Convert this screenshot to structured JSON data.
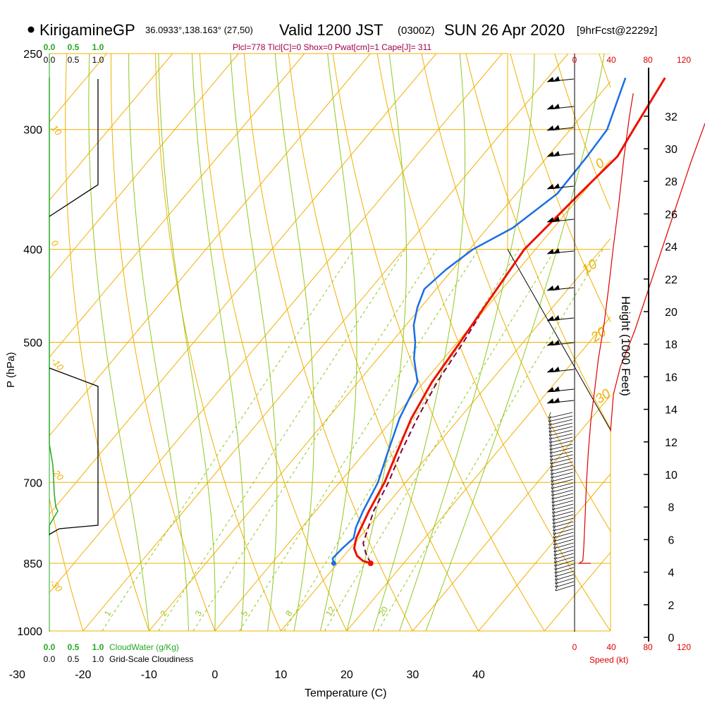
{
  "header": {
    "station": "KirigamineGP",
    "coords": "36.0933°,138.163° (27,50)",
    "valid": "Valid 1200 JST",
    "zulu": "(0300Z)",
    "date": "SUN 26 Apr 2020",
    "forecast": "[9hrFcst@2229z]",
    "indices": "Plcl=778 Tlcl[C]=0 Shox=0 Pwat[cm]=1 Cape[J]= 311"
  },
  "axes": {
    "x_label": "Temperature (C)",
    "y_label": "P (hPa)",
    "height_label": "Height (1000 Feet)",
    "speed_label": "Speed (kt)",
    "cloudwater_label": "CloudWater (g/Kg)",
    "cloudiness_label": "Grid-Scale Cloudiness"
  },
  "colors": {
    "isobar": "#f0b000",
    "isotherm": "#f0b000",
    "dry_adiabat": "#f0b000",
    "moist_adiabat": "#90c820",
    "mixing_ratio": "#90c820",
    "temperature": "#ee1100",
    "dewpoint": "#1a6ee6",
    "parcel": "#800040",
    "cloudwater": "#22aa22",
    "speed": "#dd0000",
    "indices": "#a0004a"
  },
  "chart_data": {
    "type": "line",
    "title": "KirigamineGP 36.0933°,138.163° (27,50) Valid 1200 JST (0300Z) SUN 26 Apr 2020 [9hrFcst@2229z]",
    "xlabel": "Temperature (C)",
    "ylabel": "P (hPa)",
    "pressure_ticks": [
      250,
      300,
      400,
      500,
      700,
      850,
      1000
    ],
    "temperature_ticks": [
      -30,
      -20,
      -10,
      0,
      10,
      20,
      30,
      40
    ],
    "isotherm_labels": [
      "0",
      "10",
      "20",
      "30"
    ],
    "dry_adiabat_labels": [
      "10",
      "0",
      "-10",
      "-20",
      "-30"
    ],
    "mixing_ratio_labels": [
      "1",
      "2",
      "3",
      "5",
      "8",
      "12",
      "20"
    ],
    "height_ticks": [
      0,
      2,
      4,
      6,
      8,
      10,
      12,
      14,
      16,
      18,
      20,
      22,
      24,
      26,
      28,
      30,
      32
    ],
    "speed_ticks": [
      "0",
      "40",
      "80",
      "120"
    ],
    "cloud_ticks": [
      "0.0",
      "0.5",
      "1.0"
    ],
    "series": [
      {
        "points": [
          [
            850,
            15.0
          ],
          [
            845,
            13.5
          ],
          [
            835,
            12.0
          ],
          [
            820,
            10.6
          ],
          [
            800,
            9.6
          ],
          [
            780,
            9.0
          ],
          [
            750,
            8.1
          ],
          [
            700,
            6.8
          ],
          [
            650,
            4.8
          ],
          [
            600,
            2.7
          ],
          [
            550,
            1.2
          ],
          [
            500,
            0.4
          ],
          [
            450,
            -0.6
          ],
          [
            400,
            -1.7
          ],
          [
            350,
            -0.4
          ],
          [
            320,
            0.6
          ],
          [
            300,
            -0.4
          ],
          [
            265,
            -2.2
          ]
        ]
      },
      {
        "points": [
          [
            850,
            9.4
          ],
          [
            840,
            8.6
          ],
          [
            820,
            8.8
          ],
          [
            800,
            9.2
          ],
          [
            780,
            8.2
          ],
          [
            750,
            7.2
          ],
          [
            700,
            5.8
          ],
          [
            650,
            3.4
          ],
          [
            600,
            0.9
          ],
          [
            550,
            -1.0
          ],
          [
            520,
            -4.5
          ],
          [
            500,
            -6.4
          ],
          [
            480,
            -8.8
          ],
          [
            460,
            -10.5
          ],
          [
            440,
            -11.8
          ],
          [
            420,
            -11.0
          ],
          [
            400,
            -9.5
          ],
          [
            380,
            -6.2
          ],
          [
            350,
            -3.8
          ],
          [
            320,
            -4.0
          ],
          [
            300,
            -4.4
          ],
          [
            265,
            -8.2
          ]
        ]
      },
      {
        "points": [
          [
            850,
            15.0
          ],
          [
            830,
            13.0
          ],
          [
            810,
            11.3
          ],
          [
            790,
            10.5
          ],
          [
            778,
            10.0
          ],
          [
            750,
            8.8
          ],
          [
            700,
            7.4
          ],
          [
            650,
            5.4
          ],
          [
            600,
            3.6
          ],
          [
            550,
            2.0
          ],
          [
            500,
            0.9
          ],
          [
            470,
            0.0
          ]
        ]
      }
    ],
    "height_profile": [
      [
        850,
        0
      ],
      [
        850,
        5
      ],
      [
        845,
        9
      ],
      [
        820,
        10
      ],
      [
        780,
        11
      ],
      [
        740,
        12
      ],
      [
        700,
        13
      ],
      [
        650,
        15
      ],
      [
        600,
        18
      ],
      [
        560,
        22
      ],
      [
        520,
        26
      ],
      [
        480,
        32
      ],
      [
        440,
        37
      ],
      [
        400,
        42
      ],
      [
        360,
        48
      ],
      [
        320,
        54
      ],
      [
        290,
        60
      ],
      [
        275,
        64
      ]
    ]
  }
}
